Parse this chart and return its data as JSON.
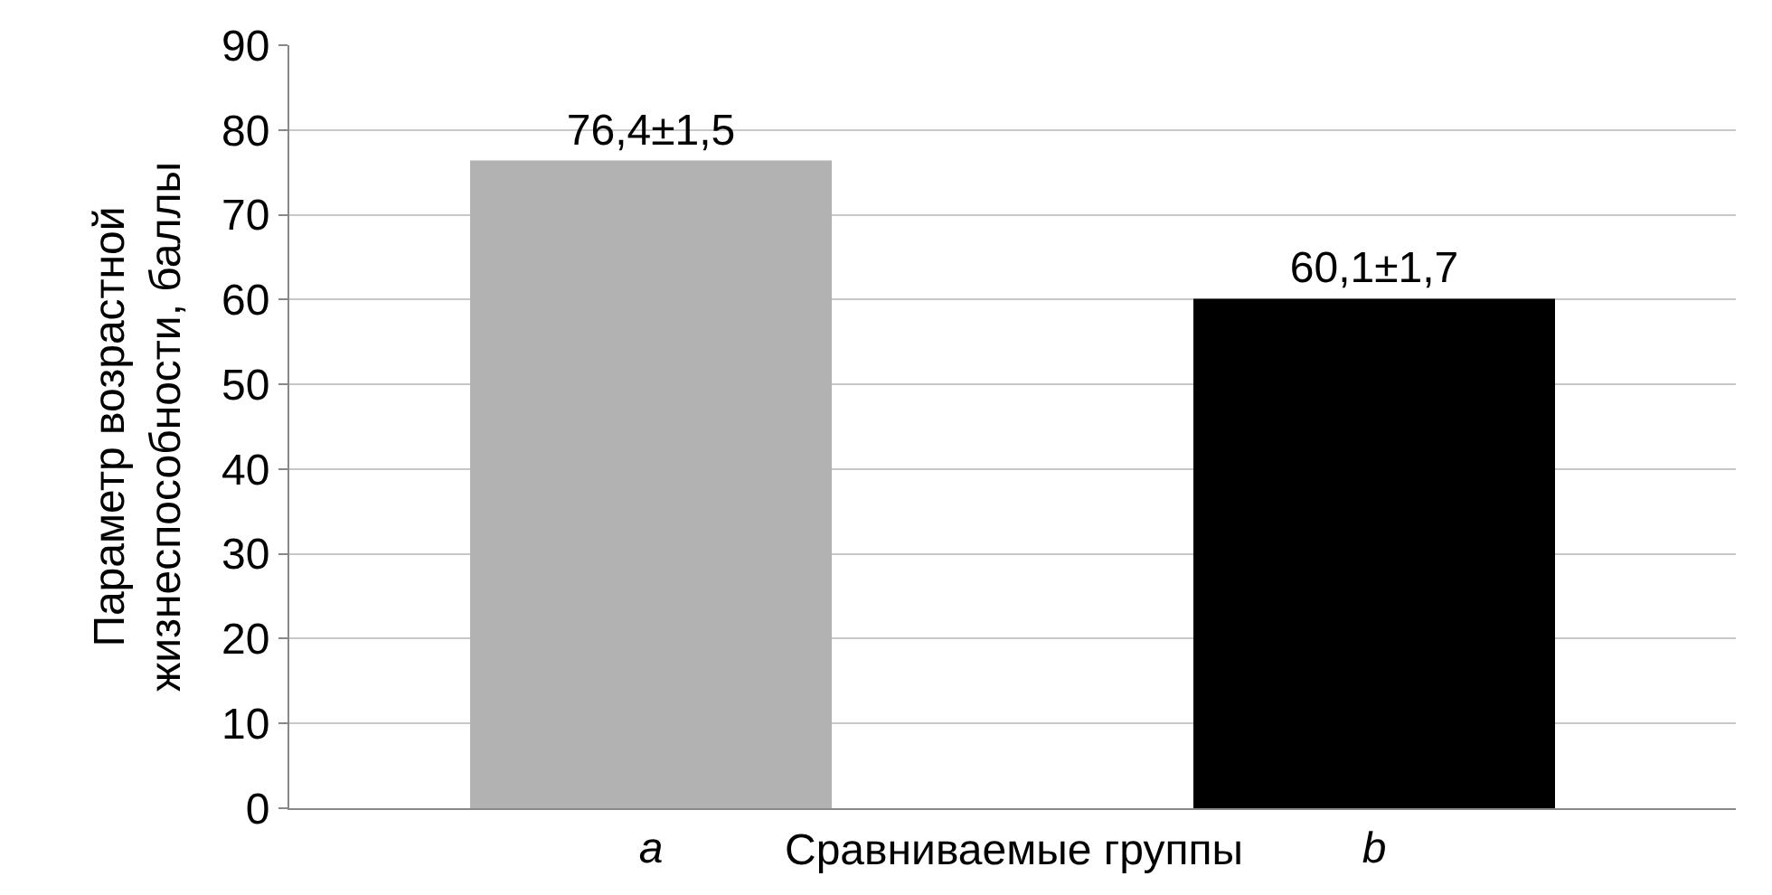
{
  "chart_data": {
    "type": "bar",
    "categories": [
      "a",
      "b"
    ],
    "values": [
      76.4,
      60.1
    ],
    "colors": [
      "#b2b2b2",
      "#000000"
    ],
    "value_labels": [
      "76,4±1,5",
      "60,1±1,7"
    ],
    "xlabel": "Сравниваемые группы",
    "ylabel": "Параметр возрастной жизнеспособности, баллы",
    "ylim": [
      0,
      90
    ],
    "yticks": [
      0,
      10,
      20,
      30,
      40,
      50,
      60,
      70,
      80,
      90
    ],
    "grid": "y",
    "legend": false
  }
}
